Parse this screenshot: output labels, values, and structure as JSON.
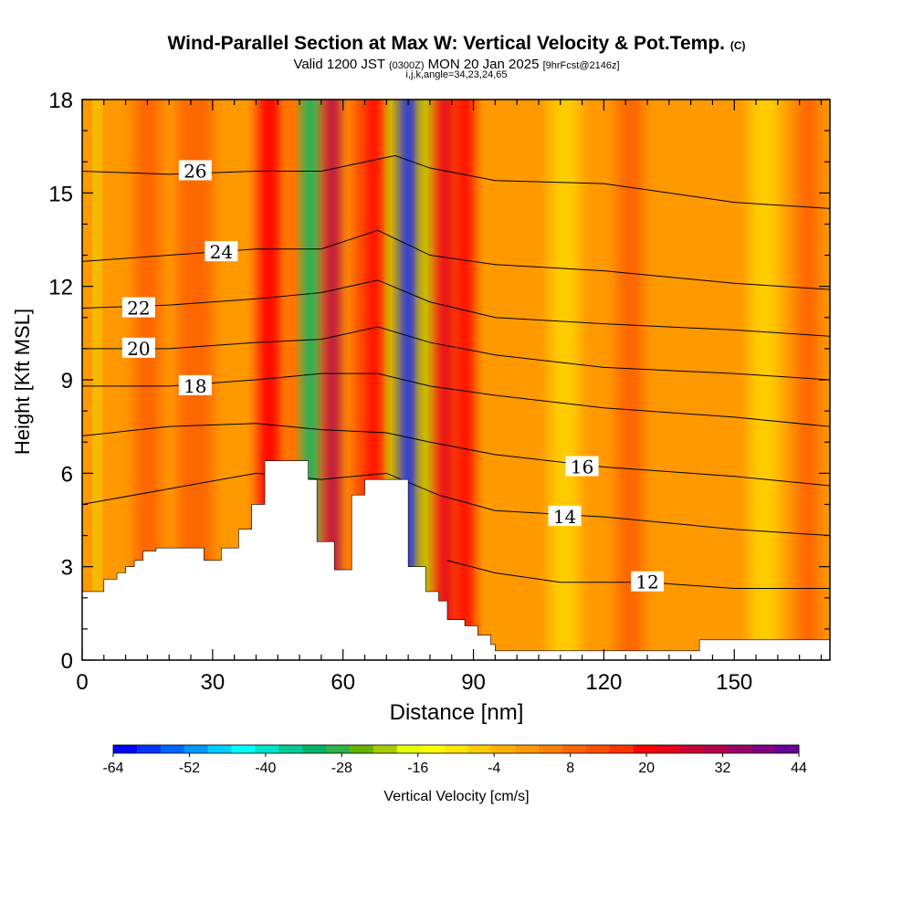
{
  "title": {
    "main": "Wind-Parallel Section at Max W: Vertical Velocity & Pot.Temp.",
    "copyright": "(C)",
    "valid_prefix": "Valid 1200 JST",
    "valid_utc": "(0300Z)",
    "valid_date": "MON 20 Jan 2025",
    "forecast": "[9hrFcst@2146z]",
    "indices": "i,j,k,angle=34,23,24,65"
  },
  "chart_data": {
    "type": "heatmap",
    "xlabel": "Distance [nm]",
    "ylabel": "Height [Kft MSL]",
    "xlim": [
      0,
      172
    ],
    "ylim": [
      0,
      18
    ],
    "x_ticks": [
      0,
      30,
      60,
      90,
      120,
      150
    ],
    "y_ticks": [
      0,
      3,
      6,
      9,
      12,
      15,
      18
    ],
    "colorbar": {
      "label": "Vertical Velocity [cm/s]",
      "tick_labels": [
        -64,
        -52,
        -40,
        -28,
        -16,
        -4,
        8,
        20,
        32,
        44
      ],
      "colors": [
        "#0000ff",
        "#0033ff",
        "#0066ff",
        "#0099ff",
        "#00ccff",
        "#00ffff",
        "#00e5cc",
        "#00cc99",
        "#00b36b",
        "#2db34a",
        "#66b300",
        "#a6cc00",
        "#e6ff00",
        "#ffff00",
        "#ffe600",
        "#ffcc00",
        "#ffb300",
        "#ff9900",
        "#ff8000",
        "#ff6600",
        "#ff4d00",
        "#ff3300",
        "#ff0000",
        "#e6001a",
        "#cc0033",
        "#b3004d",
        "#990066",
        "#800080",
        "#660099"
      ]
    },
    "field_bands": [
      {
        "x": 3.5,
        "w": 1.2,
        "value": -16
      },
      {
        "x": 15,
        "w": 6,
        "value": 10
      },
      {
        "x": 26,
        "w": 8,
        "value": 8
      },
      {
        "x": 43,
        "w": 5,
        "value": 20
      },
      {
        "x": 48.5,
        "w": 3,
        "value": 10
      },
      {
        "x": 52.5,
        "w": 3.5,
        "value": -34
      },
      {
        "x": 57.5,
        "w": 3.5,
        "value": 30
      },
      {
        "x": 63.5,
        "w": 3,
        "value": 12
      },
      {
        "x": 67,
        "w": 4,
        "value": 20
      },
      {
        "x": 71.5,
        "w": 2,
        "value": -22
      },
      {
        "x": 75,
        "w": 3.5,
        "value": -60
      },
      {
        "x": 79,
        "w": 2.5,
        "value": -22
      },
      {
        "x": 83.5,
        "w": 4,
        "value": 25
      },
      {
        "x": 88,
        "w": 4,
        "value": 18
      },
      {
        "x": 111,
        "w": 7,
        "value": -6
      },
      {
        "x": 126,
        "w": 6,
        "value": 8
      },
      {
        "x": 157,
        "w": 7,
        "value": -6
      },
      {
        "x": 167,
        "w": 5,
        "value": 10
      }
    ],
    "terrain": {
      "x": [
        0,
        5,
        5,
        8,
        8,
        10,
        10,
        12,
        12,
        14,
        14,
        17,
        17,
        28,
        28,
        32,
        32,
        36,
        36,
        39,
        39,
        42,
        42,
        52,
        52,
        54,
        54,
        58,
        58,
        62,
        62,
        65,
        65,
        75,
        75,
        79,
        79,
        82,
        82,
        84,
        84,
        88,
        88,
        91,
        91,
        94,
        94,
        95,
        95,
        98,
        98,
        100,
        100,
        102,
        102,
        106,
        106,
        110,
        110,
        142,
        142,
        172
      ],
      "y": [
        2.2,
        2.2,
        2.6,
        2.6,
        2.8,
        2.8,
        3.0,
        3.0,
        3.2,
        3.2,
        3.5,
        3.5,
        3.6,
        3.6,
        3.2,
        3.2,
        3.6,
        3.6,
        4.2,
        4.2,
        5.0,
        5.0,
        6.4,
        6.4,
        5.8,
        5.8,
        3.8,
        3.8,
        2.9,
        2.9,
        5.3,
        5.3,
        5.8,
        5.8,
        3.0,
        3.0,
        2.2,
        2.2,
        1.9,
        1.9,
        1.3,
        1.3,
        1.1,
        1.1,
        0.8,
        0.8,
        0.5,
        0.5,
        0.3,
        0.3,
        0.3,
        0.3,
        0.3,
        0.3,
        0.3,
        0.3,
        0.3,
        0.3,
        0.3,
        0.3,
        0.65,
        0.65
      ]
    },
    "contours": [
      {
        "value": 26,
        "x": [
          0,
          20,
          40,
          55,
          72,
          80,
          95,
          120,
          150,
          172
        ],
        "y": [
          15.7,
          15.6,
          15.7,
          15.7,
          16.2,
          15.8,
          15.4,
          15.3,
          14.7,
          14.5
        ],
        "label_x": 26,
        "label_y": 15.7
      },
      {
        "value": 24,
        "x": [
          0,
          20,
          40,
          55,
          68,
          80,
          95,
          120,
          150,
          172
        ],
        "y": [
          12.8,
          13.0,
          13.2,
          13.2,
          13.8,
          13.0,
          12.7,
          12.5,
          12.1,
          11.9
        ],
        "label_x": 32,
        "label_y": 13.1
      },
      {
        "value": 22,
        "x": [
          0,
          20,
          40,
          55,
          68,
          80,
          95,
          120,
          150,
          172
        ],
        "y": [
          11.3,
          11.4,
          11.6,
          11.8,
          12.2,
          11.5,
          11.0,
          10.8,
          10.6,
          10.4
        ],
        "label_x": 13,
        "label_y": 11.3
      },
      {
        "value": 20,
        "x": [
          0,
          20,
          40,
          55,
          68,
          80,
          95,
          120,
          150,
          172
        ],
        "y": [
          10.0,
          10.0,
          10.2,
          10.3,
          10.7,
          10.2,
          9.8,
          9.4,
          9.2,
          9.0
        ],
        "label_x": 13,
        "label_y": 10.0
      },
      {
        "value": 18,
        "x": [
          0,
          20,
          40,
          55,
          68,
          80,
          95,
          120,
          150,
          172
        ],
        "y": [
          8.8,
          8.8,
          9.0,
          9.2,
          9.2,
          8.8,
          8.5,
          8.1,
          7.8,
          7.5
        ],
        "label_x": 26,
        "label_y": 8.8
      },
      {
        "value": 16,
        "x": [
          0,
          20,
          40,
          55,
          70,
          80,
          95,
          120,
          150,
          172
        ],
        "y": [
          7.2,
          7.5,
          7.6,
          7.4,
          7.3,
          7.0,
          6.6,
          6.2,
          5.9,
          5.6
        ],
        "label_x": 115,
        "label_y": 6.2
      },
      {
        "value": 14,
        "x": [
          0,
          20,
          40,
          55,
          70,
          82,
          95,
          120,
          150,
          172
        ],
        "y": [
          5.0,
          5.5,
          6.0,
          5.8,
          6.0,
          5.3,
          4.8,
          4.6,
          4.2,
          4.0
        ],
        "label_x": 111,
        "label_y": 4.6
      },
      {
        "value": 12,
        "x": [
          84,
          95,
          110,
          130,
          150,
          172
        ],
        "y": [
          3.2,
          2.8,
          2.5,
          2.5,
          2.3,
          2.3
        ],
        "label_x": 130,
        "label_y": 2.5
      }
    ]
  }
}
